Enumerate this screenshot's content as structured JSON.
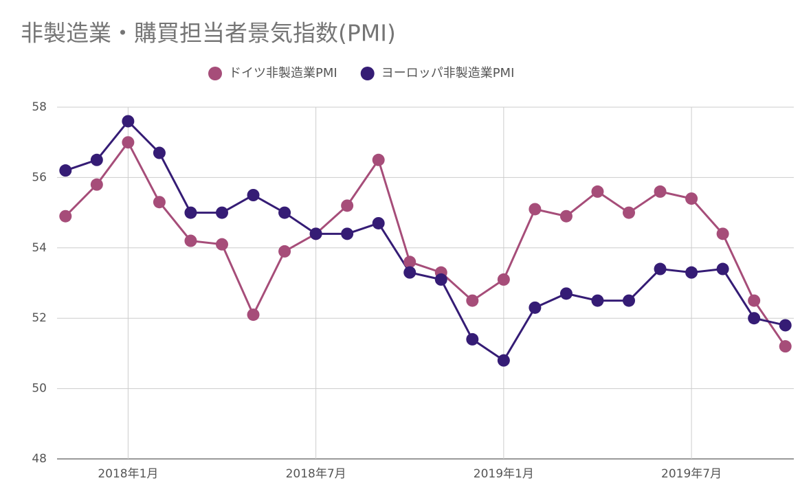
{
  "chart_data": {
    "type": "line",
    "title": "非製造業・購買担当者景気指数(PMI)",
    "x": [
      "2017-11",
      "2017-12",
      "2018-01",
      "2018-02",
      "2018-03",
      "2018-04",
      "2018-05",
      "2018-06",
      "2018-07",
      "2018-08",
      "2018-09",
      "2018-10",
      "2018-11",
      "2018-12",
      "2019-01",
      "2019-02",
      "2019-03",
      "2019-04",
      "2019-05",
      "2019-06",
      "2019-07",
      "2019-08",
      "2019-09",
      "2019-10"
    ],
    "series": [
      {
        "name": "ドイツ非製造業PMI",
        "color": "#a64d79",
        "values": [
          54.9,
          55.8,
          57.0,
          55.3,
          54.2,
          54.1,
          52.1,
          53.9,
          54.4,
          55.2,
          56.5,
          53.6,
          53.3,
          52.5,
          53.1,
          55.1,
          54.9,
          55.6,
          55.0,
          55.6,
          55.4,
          54.4,
          52.5,
          51.2
        ]
      },
      {
        "name": "ヨーロッパ非製造業PMI",
        "color": "#351c75",
        "values": [
          56.2,
          56.5,
          57.6,
          56.7,
          55.0,
          55.0,
          55.5,
          55.0,
          54.4,
          54.4,
          54.7,
          53.3,
          53.1,
          51.4,
          50.8,
          52.3,
          52.7,
          52.5,
          52.5,
          53.4,
          53.3,
          53.4,
          52.0,
          51.8
        ]
      }
    ],
    "xticks": [
      {
        "value": "2018-01",
        "label": "2018年1月"
      },
      {
        "value": "2018-07",
        "label": "2018年7月"
      },
      {
        "value": "2019-01",
        "label": "2019年1月"
      },
      {
        "value": "2019-07",
        "label": "2019年7月"
      }
    ],
    "ylim": [
      48,
      58
    ],
    "yticks": [
      48,
      50,
      52,
      54,
      56,
      58
    ],
    "grid": true,
    "legend": "top"
  }
}
